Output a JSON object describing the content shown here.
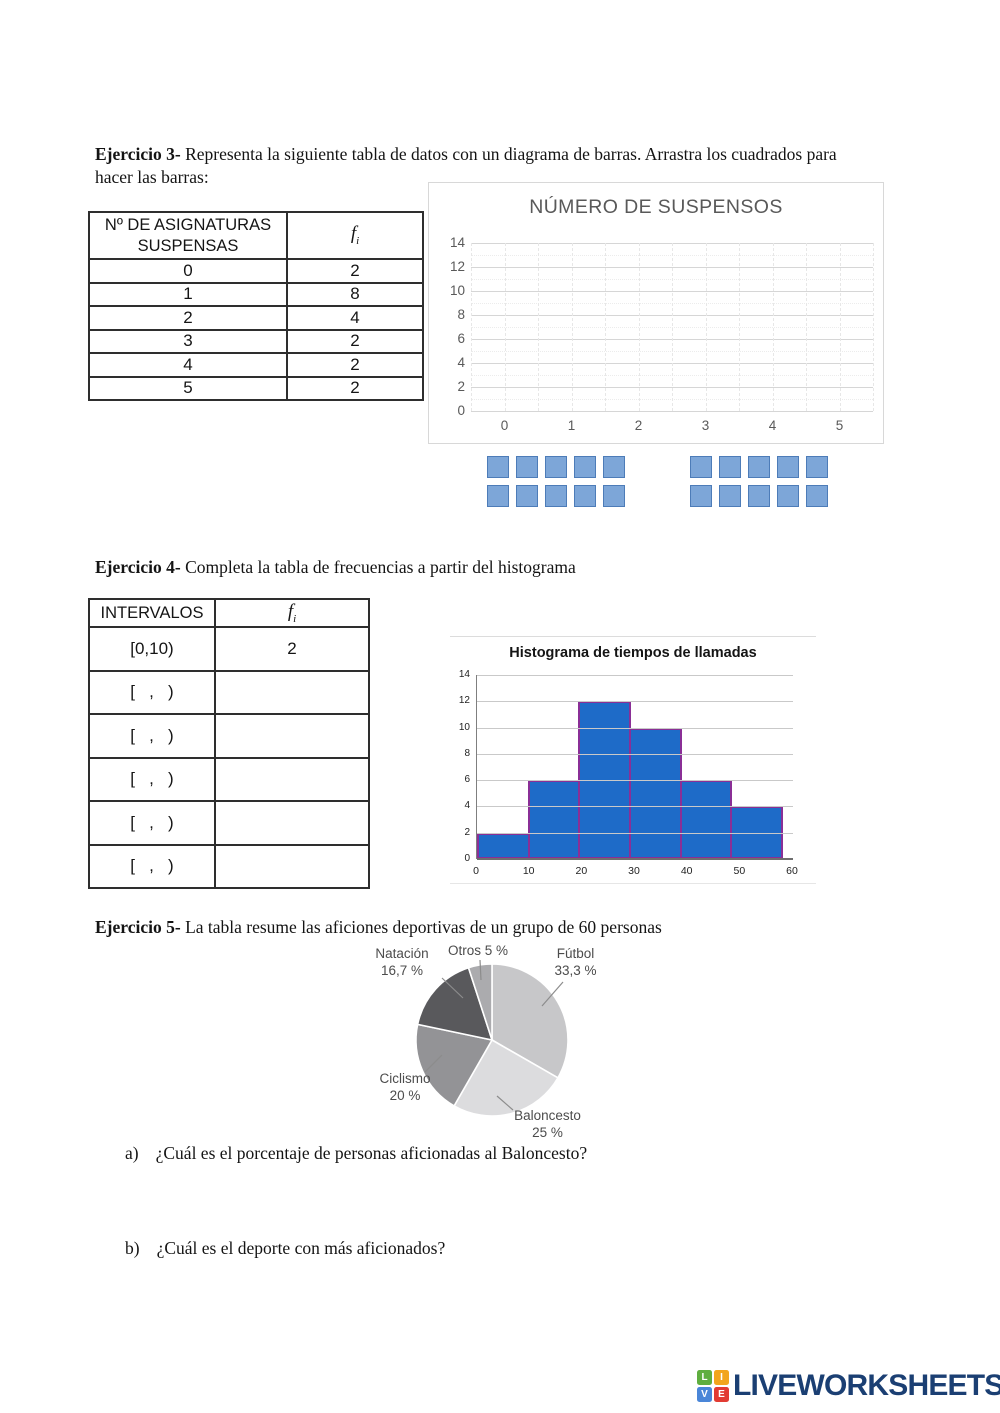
{
  "exercise3": {
    "heading_bold": "Ejercicio 3-",
    "heading_text": "Representa la siguiente tabla de datos con un diagrama de barras. Arrastra los cuadrados para hacer las barras:",
    "table": {
      "header_col1": "Nº DE ASIGNATURAS SUSPENSAS",
      "header_col2_main": "f",
      "header_col2_sub": "i",
      "rows": [
        {
          "value": "0",
          "fi": "2"
        },
        {
          "value": "1",
          "fi": "8"
        },
        {
          "value": "2",
          "fi": "4"
        },
        {
          "value": "3",
          "fi": "2"
        },
        {
          "value": "4",
          "fi": "2"
        },
        {
          "value": "5",
          "fi": "2"
        }
      ]
    },
    "squares": {
      "groups": 2,
      "per_group": 10,
      "fill": "#7da6d8",
      "border": "#4d7cb8"
    }
  },
  "exercise4": {
    "heading_bold": "Ejercicio 4-",
    "heading_text": "Completa la tabla de frecuencias a partir del histograma",
    "table": {
      "header_col1": "INTERVALOS",
      "header_col2_main": "f",
      "header_col2_sub": "i",
      "rows": [
        {
          "interval": "[0,10)",
          "fi": "2",
          "editable": false
        },
        {
          "interval": "[   ,   )",
          "fi": "",
          "editable": true
        },
        {
          "interval": "[   ,   )",
          "fi": "",
          "editable": true
        },
        {
          "interval": "[   ,   )",
          "fi": "",
          "editable": true
        },
        {
          "interval": "[   ,   )",
          "fi": "",
          "editable": true
        },
        {
          "interval": "[   ,   )",
          "fi": "",
          "editable": true
        }
      ]
    }
  },
  "exercise5": {
    "heading_bold": "Ejercicio 5-",
    "heading_text": "La tabla resume las aficiones deportivas de un grupo de 60 personas",
    "question_a_label": "a)",
    "question_a_text": "¿Cuál es el porcentaje de personas aficionadas al Baloncesto?",
    "question_b_label": "b)",
    "question_b_text": "¿Cuál es el deporte con más aficionados?"
  },
  "footer": {
    "logo_text": "LIVEWORKSHEETS",
    "logo_color": "#1b3f73",
    "logo_tiles": [
      {
        "letter": "L",
        "color": "#5fae3f"
      },
      {
        "letter": "I",
        "color": "#f2a51d"
      },
      {
        "letter": "V",
        "color": "#4a86d8"
      },
      {
        "letter": "E",
        "color": "#e23b33"
      }
    ]
  },
  "chart_data": [
    {
      "id": "numero-de-suspensos",
      "type": "bar",
      "title": "NÚMERO DE SUSPENSOS",
      "categories": [
        "0",
        "1",
        "2",
        "3",
        "4",
        "5"
      ],
      "values": [],
      "note_values_empty": "chart is blank; bars must be built by dragging squares",
      "ylim": [
        0,
        14
      ],
      "y_ticks": [
        14,
        12,
        10,
        8,
        6,
        4,
        2,
        0
      ],
      "grid": true
    },
    {
      "id": "histograma-tiempos-llamadas",
      "type": "bar",
      "title": "Histograma de tiempos de llamadas",
      "bin_edges": [
        0,
        10,
        20,
        30,
        40,
        50,
        60
      ],
      "values": [
        2,
        6,
        12,
        10,
        6,
        4
      ],
      "ylim": [
        0,
        14
      ],
      "y_ticks": [
        14,
        12,
        10,
        8,
        6,
        4,
        2,
        0
      ],
      "bar_fill": "#1e6bc8",
      "bar_border": "#8a2f96",
      "grid": true
    },
    {
      "id": "aficiones-deportivas",
      "type": "pie",
      "slices": [
        {
          "name": "Fútbol",
          "pct": 33.3,
          "pct_text": "33,3 %",
          "color": "#c7c7c9"
        },
        {
          "name": "Baloncesto",
          "pct": 25,
          "pct_text": "25 %",
          "color": "#dcdcde"
        },
        {
          "name": "Ciclismo",
          "pct": 20,
          "pct_text": "20 %",
          "color": "#939396"
        },
        {
          "name": "Natación",
          "pct": 16.7,
          "pct_text": "16,7 %",
          "color": "#59595c"
        },
        {
          "name": "Otros",
          "pct": 5,
          "pct_text": "5 %",
          "color": "#ababae"
        }
      ]
    }
  ]
}
